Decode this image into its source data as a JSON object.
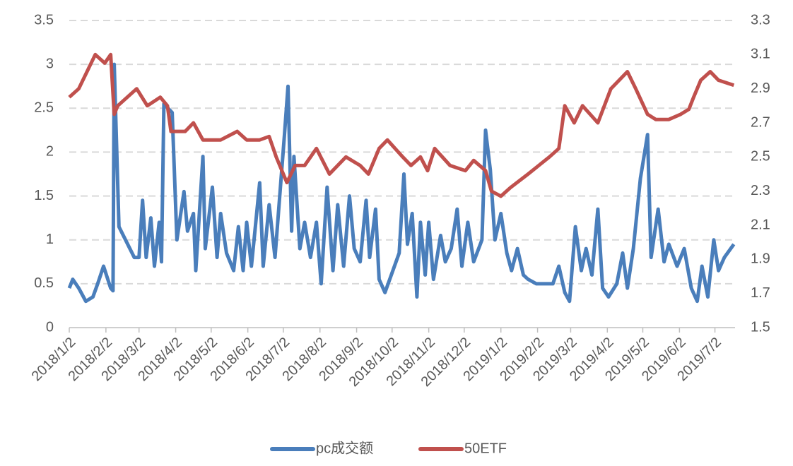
{
  "chart_data": {
    "type": "line",
    "xlim": [
      "2018/1/2",
      "2019/7/19"
    ],
    "xticks": [
      "2018/1/2",
      "2018/2/2",
      "2018/3/2",
      "2018/4/2",
      "2018/5/2",
      "2018/6/2",
      "2018/7/2",
      "2018/8/2",
      "2018/9/2",
      "2018/10/2",
      "2018/11/2",
      "2018/12/2",
      "2019/1/2",
      "2019/2/2",
      "2019/3/2",
      "2019/4/2",
      "2019/5/2",
      "2019/6/2",
      "2019/7/2"
    ],
    "ylim": [
      0,
      3.5
    ],
    "yticks": [
      0,
      0.5,
      1,
      1.5,
      2,
      2.5,
      3,
      3.5
    ],
    "y2lim": [
      1.5,
      3.3
    ],
    "y2ticks": [
      1.5,
      1.7,
      1.9,
      2.1,
      2.3,
      2.5,
      2.7,
      2.9,
      3.1,
      3.3
    ],
    "grid": true,
    "legend": "bottom",
    "series": [
      {
        "name": "pc成交额",
        "color": "#4a7ebb",
        "x": [
          "2018/1/2",
          "2018/1/5",
          "2018/1/10",
          "2018/1/16",
          "2018/1/22",
          "2018/1/26",
          "2018/1/31",
          "2018/2/6",
          "2018/2/8",
          "2018/2/9",
          "2018/2/13",
          "2018/2/26",
          "2018/3/2",
          "2018/3/5",
          "2018/3/8",
          "2018/3/12",
          "2018/3/15",
          "2018/3/19",
          "2018/3/21",
          "2018/3/23",
          "2018/3/30",
          "2018/4/3",
          "2018/4/9",
          "2018/4/12",
          "2018/4/17",
          "2018/4/19",
          "2018/4/25",
          "2018/4/27",
          "2018/5/3",
          "2018/5/7",
          "2018/5/10",
          "2018/5/15",
          "2018/5/21",
          "2018/5/25",
          "2018/5/29",
          "2018/6/1",
          "2018/6/5",
          "2018/6/8",
          "2018/6/12",
          "2018/6/15",
          "2018/6/20",
          "2018/6/25",
          "2018/6/29",
          "2018/7/3",
          "2018/7/6",
          "2018/7/9",
          "2018/7/11",
          "2018/7/16",
          "2018/7/20",
          "2018/7/25",
          "2018/7/30",
          "2018/8/3",
          "2018/8/8",
          "2018/8/13",
          "2018/8/17",
          "2018/8/22",
          "2018/8/27",
          "2018/8/31",
          "2018/9/5",
          "2018/9/10",
          "2018/9/13",
          "2018/9/18",
          "2018/9/21",
          "2018/9/26",
          "2018/10/8",
          "2018/10/12",
          "2018/10/15",
          "2018/10/19",
          "2018/10/23",
          "2018/10/26",
          "2018/10/30",
          "2018/11/2",
          "2018/11/6",
          "2018/11/12",
          "2018/11/16",
          "2018/11/21",
          "2018/11/26",
          "2018/11/30",
          "2018/12/5",
          "2018/12/10",
          "2018/12/17",
          "2018/12/20",
          "2018/12/24",
          "2018/12/28",
          "2019/1/2",
          "2019/1/7",
          "2019/1/11",
          "2019/1/16",
          "2019/1/21",
          "2019/1/25",
          "2019/2/1",
          "2019/2/15",
          "2019/2/20",
          "2019/2/25",
          "2019/3/1",
          "2019/3/6",
          "2019/3/11",
          "2019/3/15",
          "2019/3/20",
          "2019/3/25",
          "2019/3/29",
          "2019/4/3",
          "2019/4/10",
          "2019/4/15",
          "2019/4/19",
          "2019/4/24",
          "2019/4/30",
          "2019/5/6",
          "2019/5/9",
          "2019/5/15",
          "2019/5/20",
          "2019/5/24",
          "2019/5/31",
          "2019/6/6",
          "2019/6/12",
          "2019/6/17",
          "2019/6/21",
          "2019/6/26",
          "2019/7/1",
          "2019/7/5",
          "2019/7/10",
          "2019/7/18"
        ],
        "values": [
          0.45,
          0.55,
          0.45,
          0.3,
          0.35,
          0.5,
          0.7,
          0.45,
          0.42,
          3.0,
          1.15,
          0.8,
          0.8,
          1.45,
          0.8,
          1.25,
          0.7,
          1.2,
          0.75,
          2.55,
          2.45,
          1.0,
          1.55,
          1.1,
          1.3,
          0.65,
          1.95,
          0.9,
          1.6,
          0.8,
          1.3,
          0.85,
          0.65,
          1.15,
          0.65,
          1.2,
          0.7,
          1.1,
          1.65,
          0.7,
          1.4,
          0.8,
          1.5,
          2.2,
          2.75,
          1.1,
          1.95,
          0.9,
          1.2,
          0.8,
          1.2,
          0.5,
          1.6,
          0.65,
          1.4,
          0.7,
          1.5,
          0.9,
          0.75,
          1.45,
          0.8,
          1.35,
          0.55,
          0.4,
          0.85,
          1.75,
          0.95,
          1.3,
          0.35,
          1.2,
          0.6,
          1.2,
          0.55,
          1.05,
          0.75,
          0.9,
          1.35,
          0.7,
          1.2,
          0.75,
          1.0,
          2.25,
          1.8,
          1.0,
          1.3,
          0.85,
          0.65,
          0.9,
          0.6,
          0.55,
          0.5,
          0.5,
          0.7,
          0.4,
          0.3,
          1.15,
          0.65,
          0.9,
          0.6,
          1.35,
          0.45,
          0.35,
          0.5,
          0.85,
          0.45,
          0.9,
          1.7,
          2.2,
          0.8,
          1.35,
          0.75,
          0.95,
          0.7,
          0.9,
          0.45,
          0.3,
          0.7,
          0.35,
          1.0,
          0.65,
          0.8,
          0.95
        ]
      },
      {
        "name": "50ETF",
        "color": "#c0504d",
        "axis": "y2",
        "x": [
          "2018/1/2",
          "2018/1/10",
          "2018/1/24",
          "2018/2/1",
          "2018/2/6",
          "2018/2/9",
          "2018/2/12",
          "2018/2/28",
          "2018/3/9",
          "2018/3/20",
          "2018/3/26",
          "2018/3/29",
          "2018/4/10",
          "2018/4/17",
          "2018/4/25",
          "2018/5/10",
          "2018/5/24",
          "2018/6/1",
          "2018/6/12",
          "2018/6/20",
          "2018/6/26",
          "2018/7/5",
          "2018/7/12",
          "2018/7/20",
          "2018/7/30",
          "2018/8/10",
          "2018/8/24",
          "2018/9/5",
          "2018/9/12",
          "2018/9/21",
          "2018/9/28",
          "2018/10/11",
          "2018/10/18",
          "2018/10/26",
          "2018/11/1",
          "2018/11/7",
          "2018/11/20",
          "2018/12/3",
          "2018/12/10",
          "2018/12/20",
          "2018/12/25",
          "2019/1/2",
          "2019/1/10",
          "2019/1/25",
          "2019/2/12",
          "2019/2/20",
          "2019/2/25",
          "2019/3/5",
          "2019/3/12",
          "2019/3/25",
          "2019/4/5",
          "2019/4/12",
          "2019/4/19",
          "2019/4/26",
          "2019/5/6",
          "2019/5/13",
          "2019/5/24",
          "2019/6/3",
          "2019/6/10",
          "2019/6/14",
          "2019/6/20",
          "2019/6/28",
          "2019/7/5",
          "2019/7/18"
        ],
        "values": [
          2.85,
          2.9,
          3.1,
          3.05,
          3.1,
          2.75,
          2.8,
          2.9,
          2.8,
          2.85,
          2.8,
          2.65,
          2.65,
          2.7,
          2.6,
          2.6,
          2.65,
          2.6,
          2.6,
          2.62,
          2.5,
          2.35,
          2.45,
          2.45,
          2.55,
          2.4,
          2.5,
          2.45,
          2.4,
          2.55,
          2.6,
          2.5,
          2.45,
          2.5,
          2.42,
          2.55,
          2.45,
          2.42,
          2.48,
          2.42,
          2.3,
          2.27,
          2.32,
          2.4,
          2.5,
          2.55,
          2.8,
          2.7,
          2.8,
          2.7,
          2.9,
          2.95,
          3.0,
          2.9,
          2.75,
          2.72,
          2.72,
          2.75,
          2.78,
          2.85,
          2.95,
          3.0,
          2.95,
          2.92
        ]
      }
    ]
  }
}
